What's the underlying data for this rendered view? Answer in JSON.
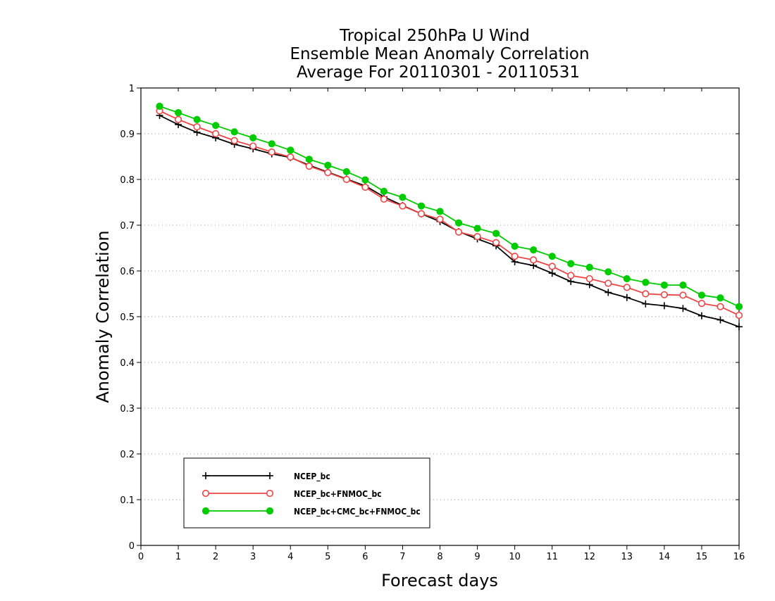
{
  "chart_data": {
    "type": "line",
    "title": [
      "Tropical 250hPa U Wind",
      "Ensemble Mean Anomaly Correlation",
      "Average For 20110301 - 20110531"
    ],
    "xlabel": "Forecast days",
    "ylabel": "Anomaly Correlation",
    "xlim": [
      0,
      16
    ],
    "ylim": [
      0,
      1
    ],
    "xticks": [
      "0",
      "1",
      "2",
      "3",
      "4",
      "5",
      "6",
      "7",
      "8",
      "9",
      "10",
      "11",
      "12",
      "13",
      "14",
      "15",
      "16"
    ],
    "yticks": [
      "0",
      "0.1",
      "0.2",
      "0.3",
      "0.4",
      "0.5",
      "0.6",
      "0.7",
      "0.8",
      "0.9",
      "1"
    ],
    "grid": "horizontal dotted",
    "legend_position": "bottom-left",
    "x": [
      0.5,
      1,
      1.5,
      2,
      2.5,
      3,
      3.5,
      4,
      4.5,
      5,
      5.5,
      6,
      6.5,
      7,
      7.5,
      8,
      8.5,
      9,
      9.5,
      10,
      10.5,
      11,
      11.5,
      12,
      12.5,
      13,
      13.5,
      14,
      14.5,
      15,
      15.5,
      16
    ],
    "series": [
      {
        "name": "NCEP_bc",
        "color": "#000000",
        "marker": "plus",
        "values": [
          0.94,
          0.92,
          0.903,
          0.891,
          0.877,
          0.867,
          0.856,
          0.848,
          0.831,
          0.816,
          0.801,
          0.786,
          0.762,
          0.743,
          0.725,
          0.708,
          0.686,
          0.67,
          0.655,
          0.62,
          0.612,
          0.595,
          0.577,
          0.57,
          0.553,
          0.542,
          0.528,
          0.524,
          0.518,
          0.502,
          0.493,
          0.478
        ]
      },
      {
        "name": "NCEP_bc+FNMOC_bc",
        "color": "#ee4444",
        "marker": "open-circle",
        "values": [
          0.95,
          0.931,
          0.915,
          0.9,
          0.885,
          0.873,
          0.86,
          0.849,
          0.829,
          0.815,
          0.8,
          0.783,
          0.757,
          0.742,
          0.725,
          0.713,
          0.685,
          0.675,
          0.662,
          0.632,
          0.624,
          0.61,
          0.59,
          0.583,
          0.573,
          0.564,
          0.55,
          0.548,
          0.547,
          0.529,
          0.522,
          0.503
        ]
      },
      {
        "name": "NCEP_bc+CMC_bc+FNMOC_bc",
        "color": "#00cc00",
        "marker": "filled-circle",
        "values": [
          0.96,
          0.946,
          0.931,
          0.918,
          0.904,
          0.891,
          0.878,
          0.864,
          0.844,
          0.831,
          0.817,
          0.799,
          0.774,
          0.761,
          0.742,
          0.73,
          0.705,
          0.693,
          0.682,
          0.654,
          0.646,
          0.632,
          0.616,
          0.608,
          0.598,
          0.583,
          0.575,
          0.569,
          0.569,
          0.547,
          0.541,
          0.522
        ]
      }
    ]
  }
}
